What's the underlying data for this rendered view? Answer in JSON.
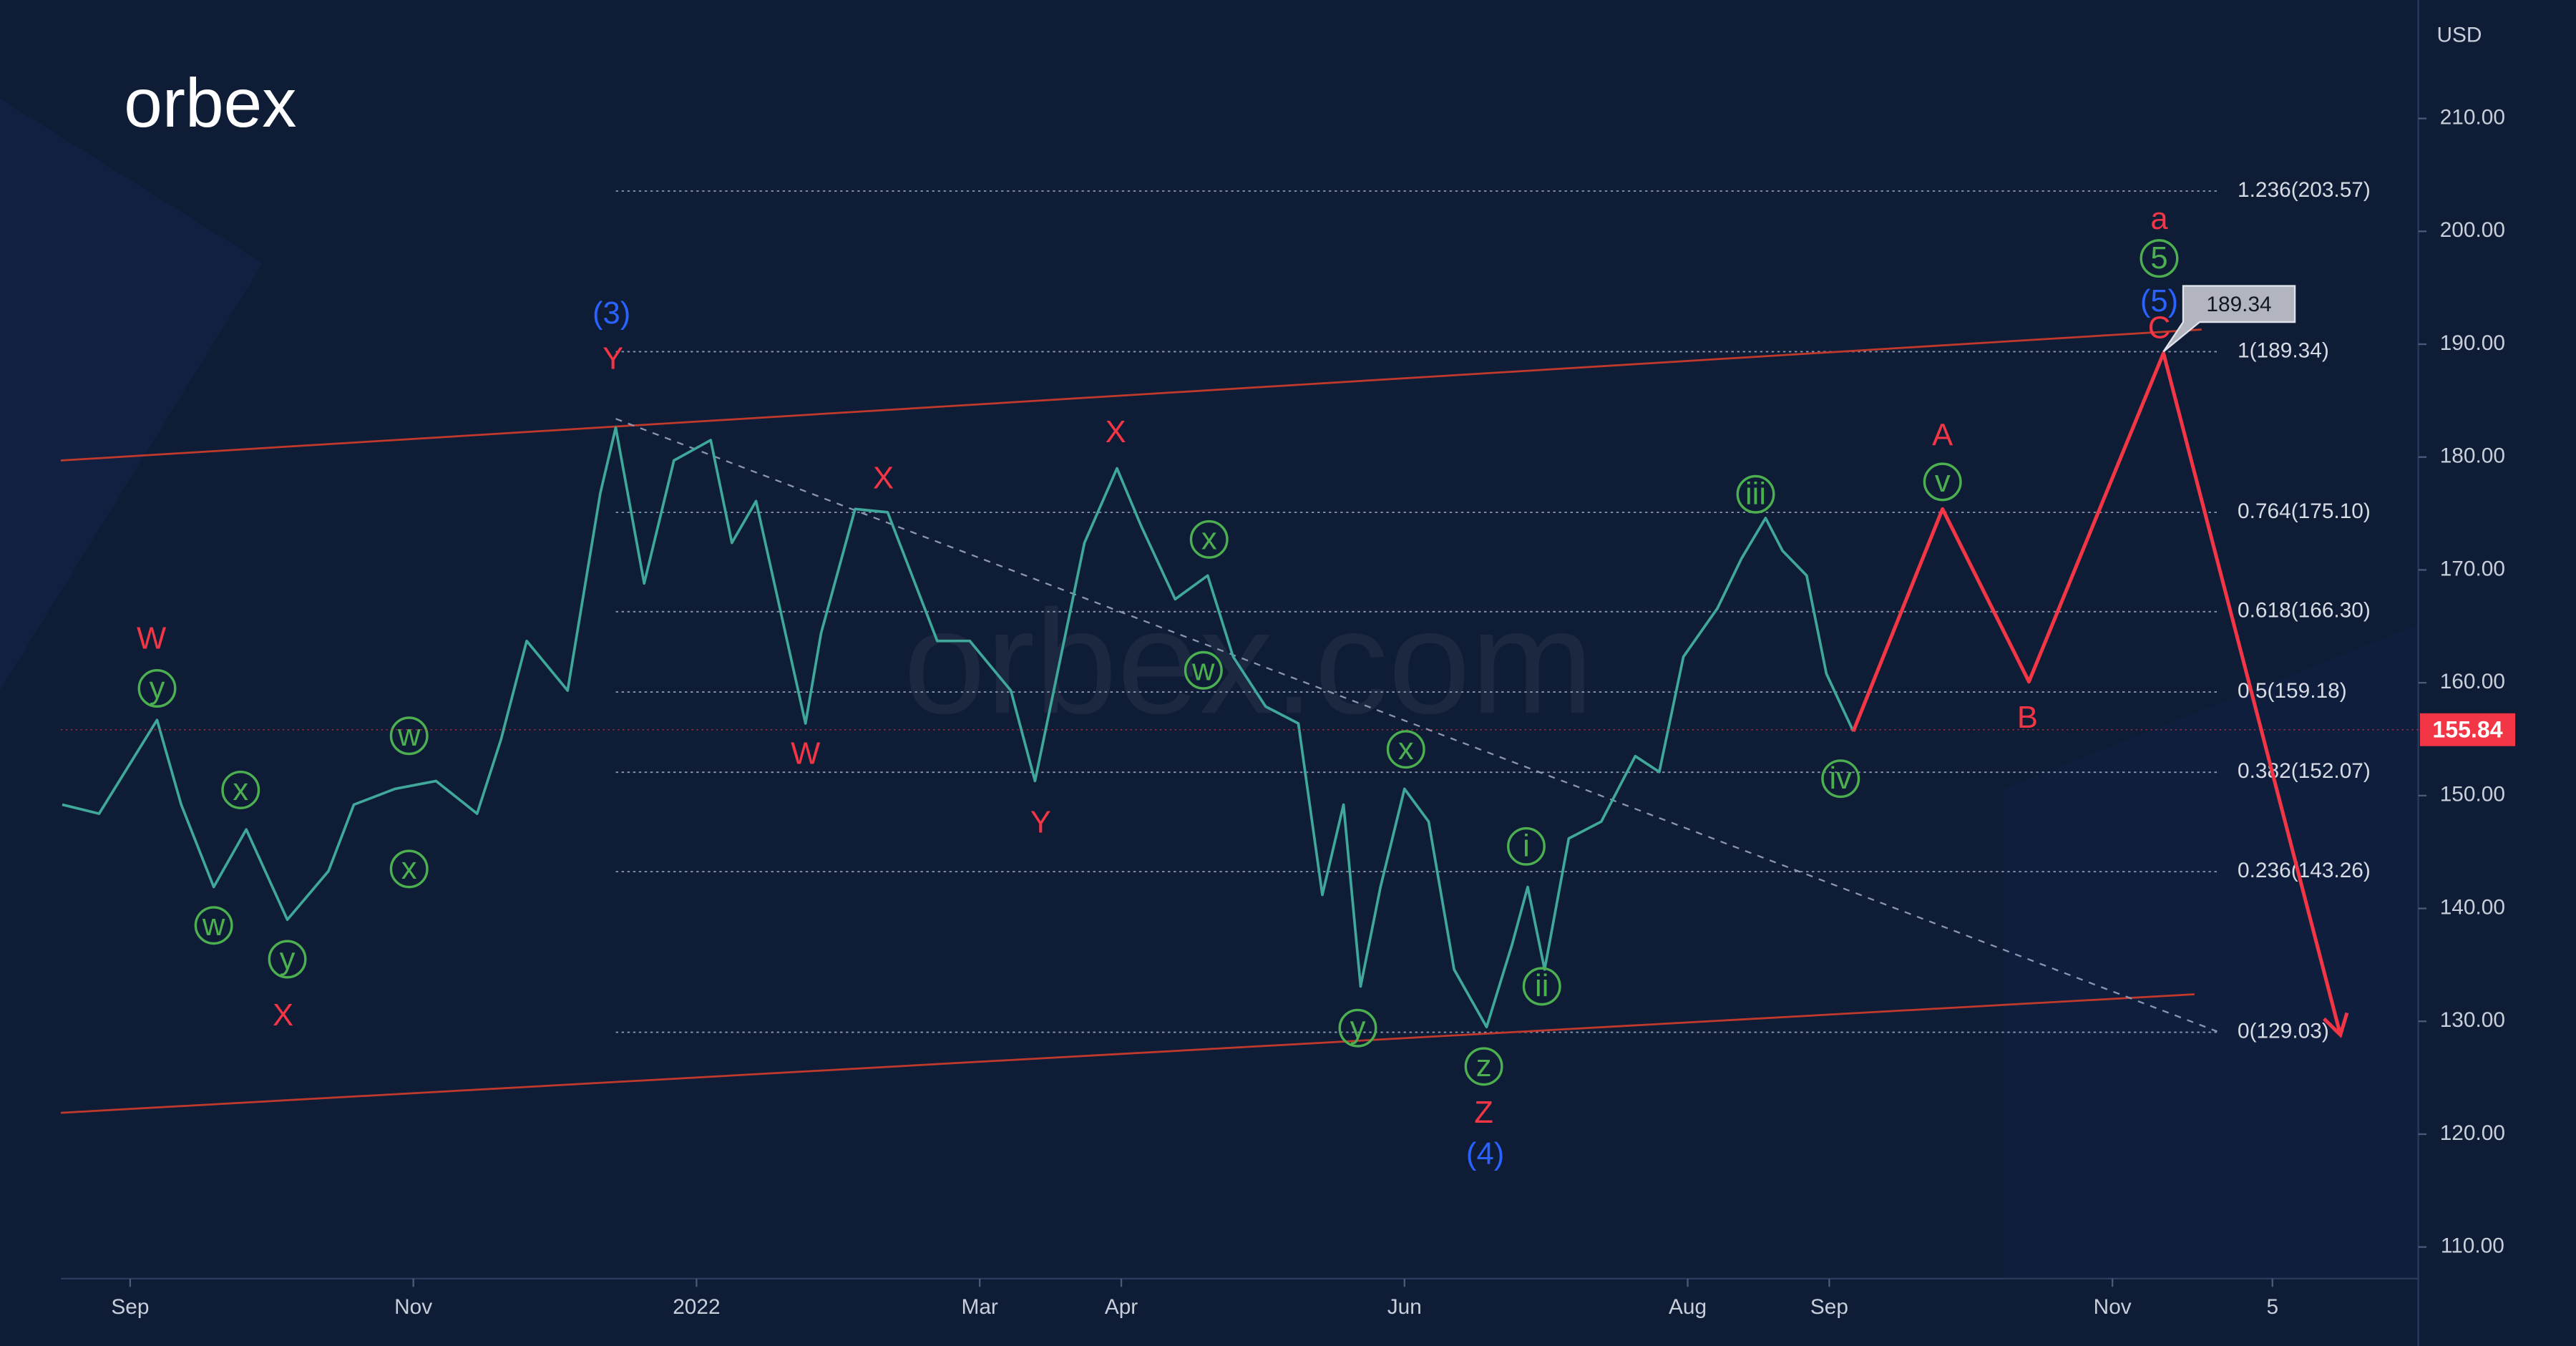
{
  "chart_data": {
    "type": "line",
    "logo": "orbex",
    "watermark": "orbex.com",
    "currency": "USD",
    "xlim": [
      -0.49,
      16.16
    ],
    "xticks": [
      {
        "value": 0,
        "label": "Sep"
      },
      {
        "value": 2,
        "label": "Nov"
      },
      {
        "value": 4,
        "label": "2022"
      },
      {
        "value": 6,
        "label": "Mar"
      },
      {
        "value": 7,
        "label": "Apr"
      },
      {
        "value": 9,
        "label": "Jun"
      },
      {
        "value": 11,
        "label": "Aug"
      },
      {
        "value": 12,
        "label": "Sep"
      },
      {
        "value": 14,
        "label": "Nov"
      },
      {
        "value": 15.13,
        "label": "5"
      }
    ],
    "ylim": [
      107.2,
      220.5
    ],
    "yticks": [
      {
        "value": 110,
        "label": "110.00"
      },
      {
        "value": 120,
        "label": "120.00"
      },
      {
        "value": 130,
        "label": "130.00"
      },
      {
        "value": 140,
        "label": "140.00"
      },
      {
        "value": 150,
        "label": "150.00"
      },
      {
        "value": 160,
        "label": "160.00"
      },
      {
        "value": 170,
        "label": "170.00"
      },
      {
        "value": 180,
        "label": "180.00"
      },
      {
        "value": 190,
        "label": "190.00"
      },
      {
        "value": 200,
        "label": "200.00"
      },
      {
        "value": 210,
        "label": "210.00"
      }
    ],
    "series": [
      {
        "color": "#3fa89a",
        "x": [
          -0.48,
          -0.22,
          0.19,
          0.36,
          0.59,
          0.82,
          1.11,
          1.4,
          1.58,
          1.87,
          2.16,
          2.45,
          2.62,
          2.8,
          3.09,
          3.32,
          3.43,
          3.63,
          3.84,
          4.1,
          4.25,
          4.42,
          4.77,
          4.88,
          5.12,
          5.35,
          5.7,
          5.93,
          6.22,
          6.39,
          6.74,
          6.97,
          7.14,
          7.38,
          7.61,
          7.79,
          8.02,
          8.25,
          8.42,
          8.57,
          8.69,
          8.83,
          9.0,
          9.17,
          9.35,
          9.58,
          9.76,
          9.87,
          9.99,
          10.16,
          10.39,
          10.63,
          10.8,
          10.97,
          11.21,
          11.38,
          11.55,
          11.67,
          11.84,
          11.98,
          12.17
        ],
        "values": [
          149.2,
          148.4,
          156.7,
          149.2,
          141.9,
          147,
          139,
          143.3,
          149.2,
          150.6,
          151.3,
          148.4,
          155,
          163.7,
          159.3,
          176.8,
          182.6,
          168.8,
          179.7,
          181.5,
          172.4,
          176.1,
          156.4,
          164.4,
          175.4,
          175.1,
          163.7,
          163.7,
          159.3,
          151.3,
          172.4,
          179,
          173.9,
          167.4,
          169.5,
          162.3,
          157.9,
          156.4,
          141.2,
          149.2,
          133.1,
          141.9,
          150.6,
          147.7,
          134.6,
          129.5,
          136.8,
          141.9,
          134.6,
          146.2,
          147.7,
          153.5,
          152.1,
          162.3,
          166.6,
          171,
          174.6,
          171.7,
          169.5,
          160.8,
          155.7
        ]
      }
    ],
    "projection": {
      "color": "#f23645",
      "x": [
        12.17,
        12.8,
        13.41,
        14.36,
        15.61
      ],
      "values": [
        155.7,
        175.4,
        160.1,
        189.2,
        128.8
      ]
    },
    "trendlines": [
      {
        "color": "#c0392b",
        "dashed": false,
        "x": [
          -0.49,
          14.63
        ],
        "values": [
          179.7,
          191.3
        ]
      },
      {
        "color": "#c0392b",
        "dashed": false,
        "x": [
          -0.49,
          14.58
        ],
        "values": [
          121.9,
          132.4
        ]
      },
      {
        "color": "#8a96ad",
        "dashed": true,
        "x": [
          3.43,
          14.74
        ],
        "values": [
          183.4,
          129.1
        ]
      }
    ],
    "fib_xlim": [
      3.43,
      14.74
    ],
    "fib_levels": [
      {
        "value": 203.57,
        "label": "1.236(203.57)"
      },
      {
        "value": 189.34,
        "label": "1(189.34)"
      },
      {
        "value": 175.1,
        "label": "0.764(175.10)"
      },
      {
        "value": 166.3,
        "label": "0.618(166.30)"
      },
      {
        "value": 159.18,
        "label": "0.5(159.18)"
      },
      {
        "value": 152.07,
        "label": "0.382(152.07)"
      },
      {
        "value": 143.26,
        "label": "0.236(143.26)"
      },
      {
        "value": 129.03,
        "label": "0(129.03)"
      }
    ],
    "last_price": 155.84,
    "callout": {
      "x": 14.36,
      "value": 189.34
    },
    "annotations": [
      {
        "text": "(3)",
        "color": "#2962ff",
        "circled": false,
        "x": 3.4,
        "y": 192.7
      },
      {
        "text": "Y",
        "color": "#f23645",
        "circled": false,
        "x": 3.41,
        "y": 188.7
      },
      {
        "text": "W",
        "color": "#f23645",
        "circled": false,
        "x": 0.15,
        "y": 163.9
      },
      {
        "text": "y",
        "color": "#4caf50",
        "circled": true,
        "x": 0.19,
        "y": 159.5
      },
      {
        "text": "x",
        "color": "#4caf50",
        "circled": true,
        "x": 0.78,
        "y": 150.5
      },
      {
        "text": "w",
        "color": "#4caf50",
        "circled": true,
        "x": 0.59,
        "y": 138.5
      },
      {
        "text": "y",
        "color": "#4caf50",
        "circled": true,
        "x": 1.11,
        "y": 135.5
      },
      {
        "text": "X",
        "color": "#f23645",
        "circled": false,
        "x": 1.08,
        "y": 130.5
      },
      {
        "text": "w",
        "color": "#4caf50",
        "circled": true,
        "x": 1.97,
        "y": 155.3
      },
      {
        "text": "x",
        "color": "#4caf50",
        "circled": true,
        "x": 1.97,
        "y": 143.5
      },
      {
        "text": "X",
        "color": "#f23645",
        "circled": false,
        "x": 5.32,
        "y": 178.1
      },
      {
        "text": "X",
        "color": "#f23645",
        "circled": false,
        "x": 6.96,
        "y": 182.2
      },
      {
        "text": "W",
        "color": "#f23645",
        "circled": false,
        "x": 4.77,
        "y": 153.7
      },
      {
        "text": "Y",
        "color": "#f23645",
        "circled": false,
        "x": 6.43,
        "y": 147.6
      },
      {
        "text": "x",
        "color": "#4caf50",
        "circled": true,
        "x": 7.62,
        "y": 172.7
      },
      {
        "text": "w",
        "color": "#4caf50",
        "circled": true,
        "x": 7.58,
        "y": 161.1
      },
      {
        "text": "x",
        "color": "#4caf50",
        "circled": true,
        "x": 9.01,
        "y": 154.1
      },
      {
        "text": "y",
        "color": "#4caf50",
        "circled": true,
        "x": 8.67,
        "y": 129.4
      },
      {
        "text": "z",
        "color": "#4caf50",
        "circled": true,
        "x": 9.56,
        "y": 126.0
      },
      {
        "text": "Z",
        "color": "#f23645",
        "circled": false,
        "x": 9.56,
        "y": 121.9
      },
      {
        "text": "(4)",
        "color": "#2962ff",
        "circled": false,
        "x": 9.57,
        "y": 118.2
      },
      {
        "text": "i",
        "color": "#4caf50",
        "circled": true,
        "x": 9.86,
        "y": 145.5
      },
      {
        "text": "ii",
        "color": "#4caf50",
        "circled": true,
        "x": 9.97,
        "y": 133.1
      },
      {
        "text": "iii",
        "color": "#4caf50",
        "circled": true,
        "x": 11.48,
        "y": 176.7
      },
      {
        "text": "iv",
        "color": "#4caf50",
        "circled": true,
        "x": 12.08,
        "y": 151.5
      },
      {
        "text": "v",
        "color": "#4caf50",
        "circled": true,
        "x": 12.8,
        "y": 177.8
      },
      {
        "text": "A",
        "color": "#f23645",
        "circled": false,
        "x": 12.8,
        "y": 181.9
      },
      {
        "text": "B",
        "color": "#f23645",
        "circled": false,
        "x": 13.4,
        "y": 156.9
      },
      {
        "text": "a",
        "color": "#f23645",
        "circled": false,
        "x": 14.33,
        "y": 201.1
      },
      {
        "text": "5",
        "color": "#4caf50",
        "circled": true,
        "x": 14.33,
        "y": 197.6
      },
      {
        "text": "(5)",
        "color": "#2962ff",
        "circled": false,
        "x": 14.33,
        "y": 193.8
      },
      {
        "text": "C",
        "color": "#f23645",
        "circled": false,
        "x": 14.33,
        "y": 191.4
      }
    ]
  }
}
